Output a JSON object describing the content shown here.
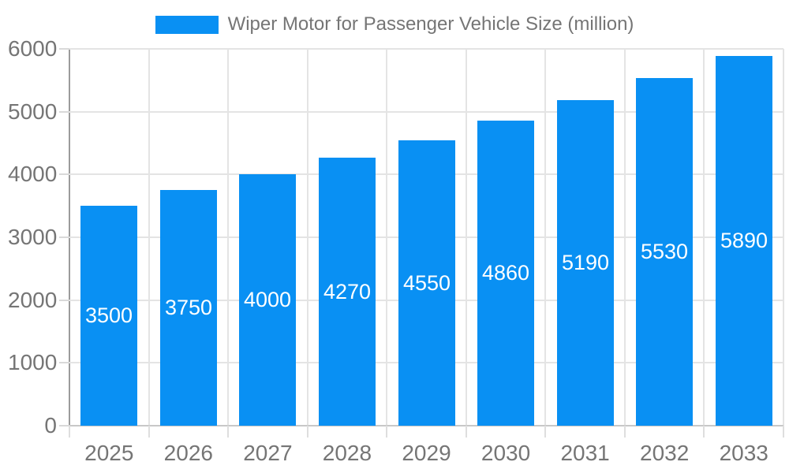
{
  "chart_data": {
    "type": "bar",
    "title": "Wiper Motor for Passenger Vehicle Size (million)",
    "legend": {
      "position": "top",
      "entries": [
        "Wiper Motor for Passenger Vehicle Size (million)"
      ]
    },
    "categories": [
      "2025",
      "2026",
      "2027",
      "2028",
      "2029",
      "2030",
      "2031",
      "2032",
      "2033"
    ],
    "series": [
      {
        "name": "Wiper Motor for Passenger Vehicle Size (million)",
        "values": [
          3500,
          3750,
          4000,
          4270,
          4550,
          4860,
          5190,
          5530,
          5890
        ]
      }
    ],
    "value_labels": "inside-center",
    "xlabel": "",
    "ylabel": "",
    "ylim": [
      0,
      6000
    ],
    "y_ticks": [
      0,
      1000,
      2000,
      3000,
      4000,
      5000,
      6000
    ],
    "grid": "both",
    "colors": {
      "bar": "#0990f3",
      "axis_text": "#757575",
      "value_label_text": "#ffffff",
      "gridline": "#e4e4e4",
      "y_axis_line": "#9b9b9b",
      "x_axis_line": "#c8c8c8",
      "background": "#ffffff"
    }
  }
}
